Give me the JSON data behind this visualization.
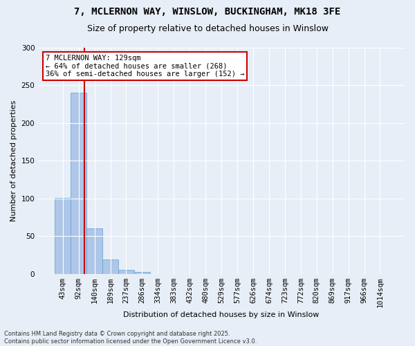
{
  "title1": "7, MCLERNON WAY, WINSLOW, BUCKINGHAM, MK18 3FE",
  "title2": "Size of property relative to detached houses in Winslow",
  "xlabel": "Distribution of detached houses by size in Winslow",
  "ylabel": "Number of detached properties",
  "bar_labels": [
    "43sqm",
    "92sqm",
    "140sqm",
    "189sqm",
    "237sqm",
    "286sqm",
    "334sqm",
    "383sqm",
    "432sqm",
    "480sqm",
    "529sqm",
    "577sqm",
    "626sqm",
    "674sqm",
    "723sqm",
    "772sqm",
    "820sqm",
    "869sqm",
    "917sqm",
    "966sqm",
    "1014sqm"
  ],
  "bar_values": [
    101,
    240,
    60,
    19,
    5,
    3,
    0,
    0,
    0,
    0,
    0,
    0,
    0,
    0,
    0,
    0,
    0,
    0,
    0,
    0,
    0
  ],
  "bar_color": "#aec6e8",
  "bar_edge_color": "#5a9fd4",
  "property_line_bin": 1.35,
  "annotation_text": "7 MCLERNON WAY: 129sqm\n← 64% of detached houses are smaller (268)\n36% of semi-detached houses are larger (152) →",
  "annotation_box_color": "#ffffff",
  "annotation_box_edge": "#cc0000",
  "vline_color": "#cc0000",
  "background_color": "#e8eef7",
  "ylim": [
    0,
    300
  ],
  "yticks": [
    0,
    50,
    100,
    150,
    200,
    250,
    300
  ],
  "footer1": "Contains HM Land Registry data © Crown copyright and database right 2025.",
  "footer2": "Contains public sector information licensed under the Open Government Licence v3.0.",
  "title1_fontsize": 10,
  "title2_fontsize": 9,
  "axis_label_fontsize": 8,
  "tick_fontsize": 7.5,
  "annotation_fontsize": 7.5,
  "footer_fontsize": 6
}
